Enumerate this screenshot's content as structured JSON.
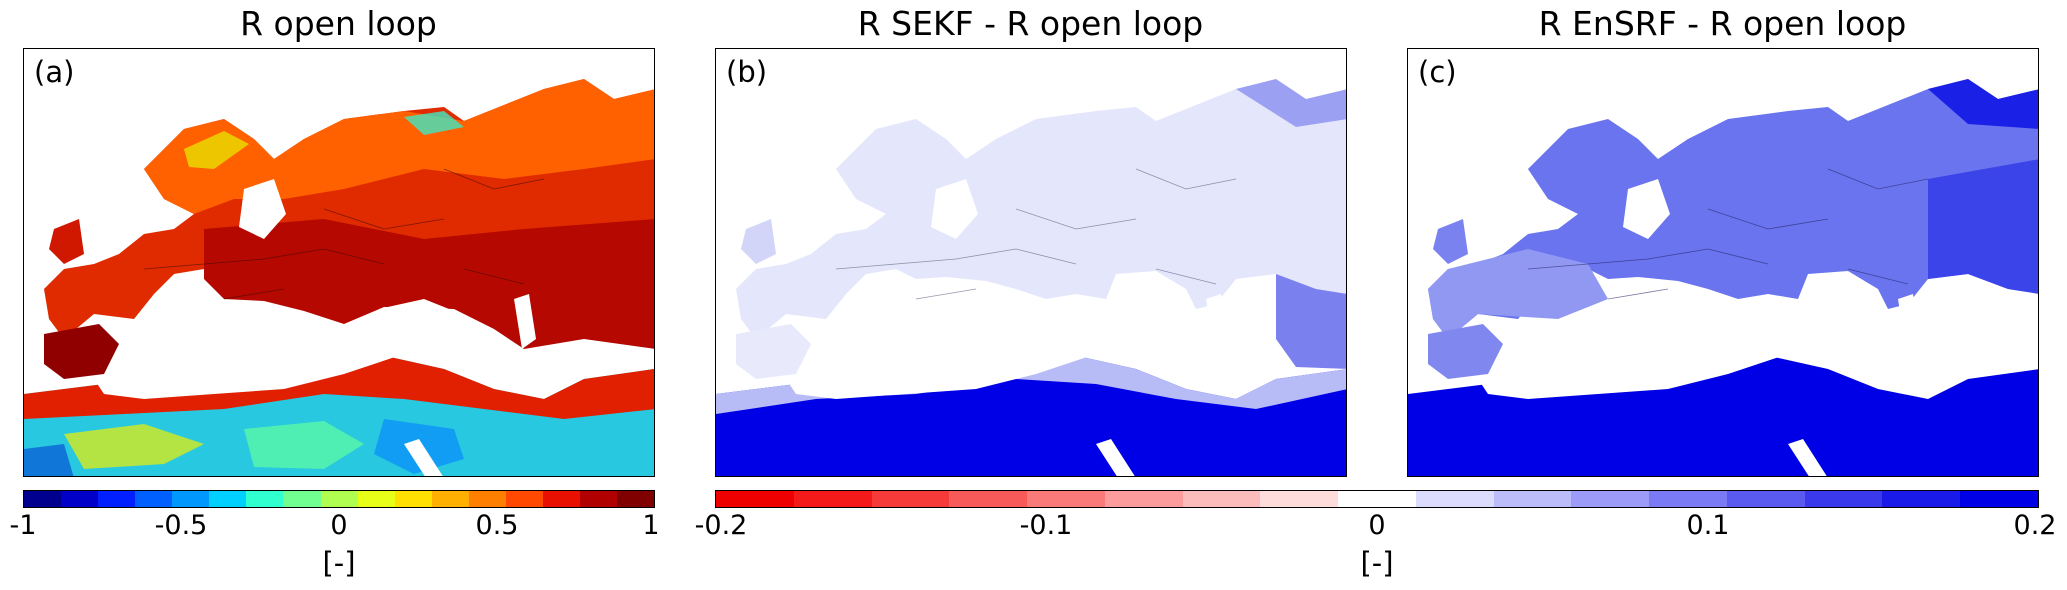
{
  "panels": [
    {
      "title": "R open loop",
      "label": "(a)"
    },
    {
      "title": "R SEKF - R open loop",
      "label": "(b)"
    },
    {
      "title": "R EnSRF - R open loop",
      "label": "(c)"
    }
  ],
  "colorbars": [
    {
      "ticks": [
        "-1",
        "-0.5",
        "0",
        "0.5",
        "1"
      ],
      "unit": "[-]",
      "colors": [
        "#00008f",
        "#0000c8",
        "#0020ff",
        "#0060ff",
        "#0098ff",
        "#00d0ff",
        "#30ffd0",
        "#70ff90",
        "#b0ff50",
        "#e8ff18",
        "#ffe000",
        "#ffb000",
        "#ff8000",
        "#ff4800",
        "#e81000",
        "#b00000",
        "#800000"
      ]
    },
    {
      "ticks": [
        "-0.2",
        "-0.1",
        "0",
        "0.1",
        "0.2"
      ],
      "unit": "[-]",
      "colors": [
        "#ee0000",
        "#f41a1a",
        "#f63a3a",
        "#f85a5a",
        "#fa7a7a",
        "#fc9c9c",
        "#fdbcbc",
        "#fedcdc",
        "#ffffff",
        "#dcdcfe",
        "#bcbcfb",
        "#9c9cf8",
        "#7a7af4",
        "#5a5af0",
        "#3a3aec",
        "#1a1ae8",
        "#0000e6"
      ]
    }
  ],
  "colors": {
    "panel_a_base": "#e02a00",
    "panel_a_land_dark": "#b40800",
    "panel_a_africa": "#28c8e0",
    "panel_b_base": "#e4e6fb",
    "panel_c_base": "#6a74ee",
    "diff_strong_blue": "#0000e6"
  }
}
